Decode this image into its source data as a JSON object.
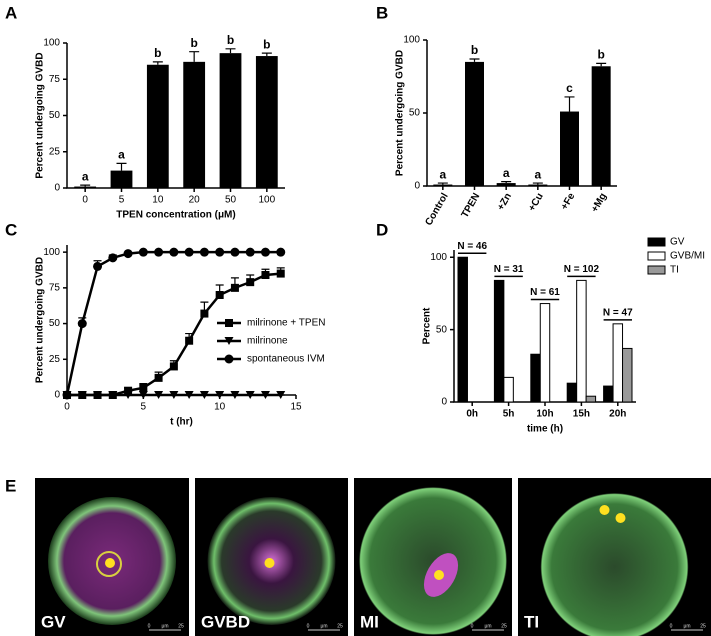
{
  "chart_data": [
    {
      "type": "bar",
      "panel": "A",
      "ylabel": "Percent undergoing GVBD",
      "xlabel": "TPEN concentration (μM)",
      "categories": [
        "0",
        "5",
        "10",
        "20",
        "50",
        "100"
      ],
      "values": [
        1,
        12,
        85,
        87,
        93,
        91
      ],
      "errors": [
        1,
        5,
        2,
        7,
        3,
        2
      ],
      "letters": [
        "a",
        "a",
        "b",
        "b",
        "b",
        "b"
      ],
      "color": "#000000",
      "ylim": [
        0,
        100
      ],
      "yticks": [
        0,
        25,
        50,
        75,
        100
      ]
    },
    {
      "type": "bar",
      "panel": "B",
      "ylabel": "Percent undergoing GVBD",
      "rotate_labels": true,
      "categories": [
        "Control",
        "TPEN",
        "+Zn",
        "+Cu",
        "+Fe",
        "+Mg"
      ],
      "values": [
        1,
        85,
        2,
        1,
        51,
        82
      ],
      "errors": [
        1,
        2,
        1,
        1,
        10,
        2
      ],
      "letters": [
        "a",
        "b",
        "a",
        "a",
        "c",
        "b"
      ],
      "color": "#000000",
      "ylim": [
        0,
        100
      ],
      "yticks": [
        0,
        50,
        100
      ]
    },
    {
      "type": "line",
      "panel": "C",
      "ylabel": "Percent undergoing GVBD",
      "xlabel": "t (hr)",
      "x": [
        0,
        1,
        2,
        3,
        4,
        5,
        6,
        7,
        8,
        9,
        10,
        11,
        12,
        13,
        14
      ],
      "series": [
        {
          "name": "milrinone + TPEN",
          "marker": "square",
          "color": "#000000",
          "values": [
            0,
            0,
            0,
            0,
            3,
            5,
            12,
            20,
            38,
            57,
            70,
            75,
            79,
            84,
            85
          ],
          "errors": [
            0,
            0,
            0,
            0,
            2,
            3,
            4,
            4,
            5,
            8,
            7,
            7,
            5,
            4,
            4
          ]
        },
        {
          "name": "milrinone",
          "marker": "triangle",
          "color": "#000000",
          "values": [
            0,
            0,
            0,
            0,
            0,
            0,
            0,
            0,
            0,
            0,
            0,
            0,
            0,
            0,
            0
          ],
          "errors": [
            0,
            0,
            0,
            0,
            0,
            0,
            0,
            0,
            0,
            0,
            0,
            0,
            0,
            0,
            0
          ]
        },
        {
          "name": "spontaneous IVM",
          "marker": "circle",
          "color": "#000000",
          "values": [
            0,
            50,
            90,
            96,
            99,
            100,
            100,
            100,
            100,
            100,
            100,
            100,
            100,
            100,
            100
          ],
          "errors": [
            0,
            4,
            4,
            2,
            1,
            0,
            0,
            0,
            0,
            0,
            0,
            0,
            0,
            0,
            0
          ]
        }
      ],
      "xlim": [
        0,
        15
      ],
      "xticks": [
        0,
        5,
        10,
        15
      ],
      "ylim": [
        0,
        105
      ],
      "yticks": [
        0,
        25,
        50,
        75,
        100
      ]
    },
    {
      "type": "grouped_bar",
      "panel": "D",
      "ylabel": "Percent",
      "xlabel": "time (h)",
      "categories": [
        "0h",
        "5h",
        "10h",
        "15h",
        "20h"
      ],
      "group_labels": [
        "N = 46",
        "N = 31",
        "N = 61",
        "N = 102",
        "N = 47"
      ],
      "series": [
        {
          "name": "GV",
          "color": "#000000",
          "values": [
            100,
            84,
            33,
            13,
            11
          ]
        },
        {
          "name": "GVB/MI",
          "color": "#ffffff",
          "values": [
            0,
            17,
            68,
            84,
            54
          ]
        },
        {
          "name": "TI",
          "color": "#999999",
          "values": [
            0,
            0,
            0,
            4,
            37
          ]
        }
      ],
      "ylim": [
        0,
        105
      ],
      "yticks": [
        0,
        50,
        100
      ],
      "legend": "top-right"
    }
  ],
  "images": {
    "panel": "E",
    "labels": [
      "GV",
      "GVBD",
      "MI",
      "TI"
    ],
    "scale": [
      "0",
      "μm",
      "25"
    ]
  }
}
